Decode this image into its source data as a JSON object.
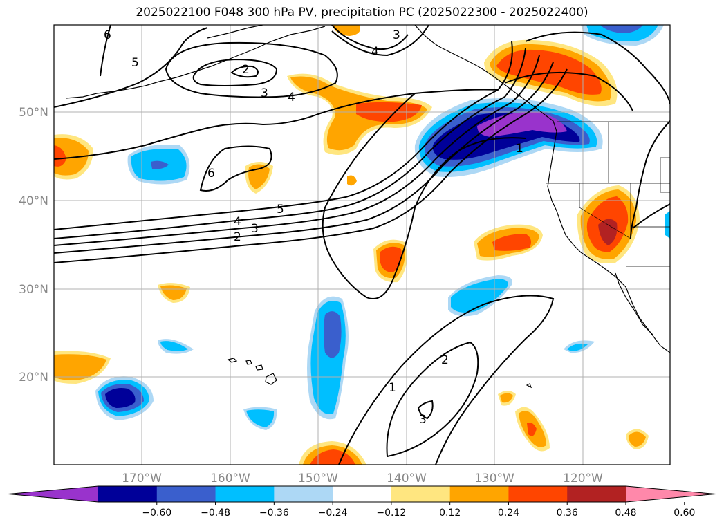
{
  "title": "2025022100 F048 300 hPa PV, precipitation PC (2025022300 - 2025022400)",
  "lat_labels": [
    "50°N",
    "40°N",
    "30°N",
    "20°N"
  ],
  "lon_labels": [
    "170°W",
    "160°W",
    "150°W",
    "140°W",
    "130°W",
    "120°W"
  ],
  "pv_contour_labels": [
    "6",
    "5",
    "2",
    "3",
    "4",
    "3",
    "4",
    "6",
    "5",
    "4",
    "3",
    "2",
    "1",
    "2",
    "1",
    "3"
  ],
  "colorbar": {
    "ticks": [
      "−0.60",
      "−0.48",
      "−0.36",
      "−0.24",
      "−0.12",
      "0.12",
      "0.24",
      "0.36",
      "0.48",
      "0.60"
    ],
    "colors": [
      "#9933cc",
      "#000099",
      "#3a5fcd",
      "#00bfff",
      "#add8f5",
      "#ffffff",
      "#ffe680",
      "#ffa500",
      "#ff4500",
      "#b22222",
      "#ff88aa"
    ]
  }
}
